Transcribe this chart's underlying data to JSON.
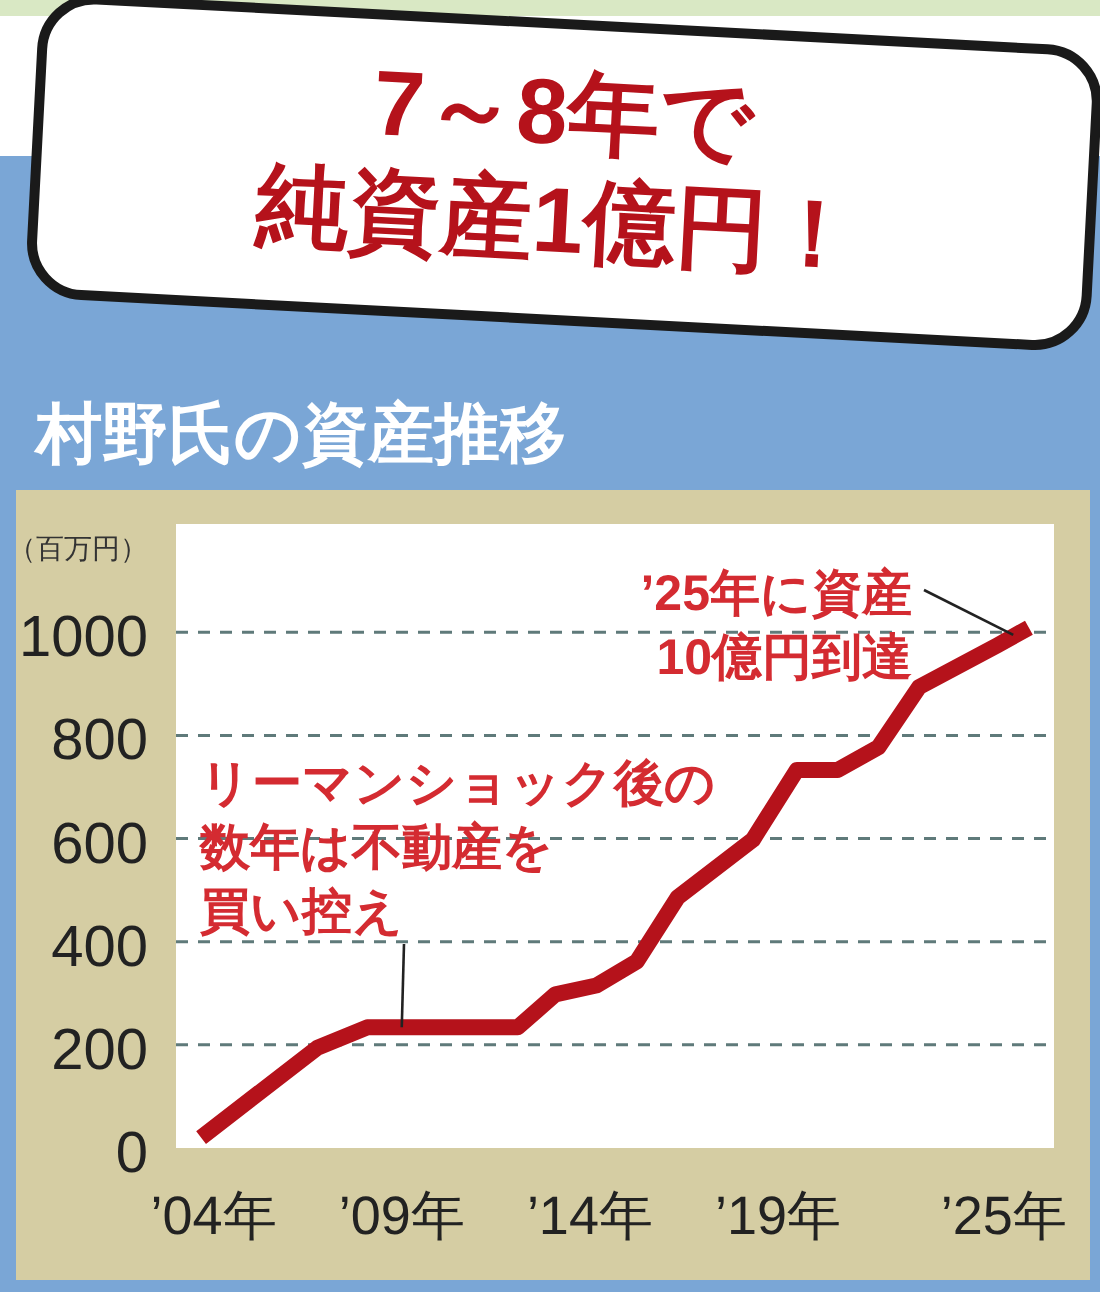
{
  "chart_data": {
    "type": "line",
    "title": "7～8年で純資産1億円！",
    "subtitle": "村野氏の資産推移",
    "ylabel": "（百万円）",
    "x": [
      "2003-09",
      "2006-10",
      "2008-02",
      "2012-02",
      "2013-02",
      "2014-03",
      "2015-04",
      "2016-05",
      "2018-05",
      "2019-07",
      "2020-08",
      "2021-09",
      "2022-10",
      "2024-11",
      "2025-09"
    ],
    "series": [
      {
        "color": "#b5121b",
        "values": [
          20,
          194,
          234,
          234,
          298,
          315,
          362,
          486,
          598,
          733,
          733,
          777,
          894,
          975,
          1009
        ]
      }
    ],
    "xlim": [
      "2003-01",
      "2026-05"
    ],
    "ylim": [
      0,
      1210
    ],
    "xticks": [
      {
        "value": "2004",
        "label": "’04年"
      },
      {
        "value": "2009",
        "label": "’09年"
      },
      {
        "value": "2014",
        "label": "’14年"
      },
      {
        "value": "2019",
        "label": "’19年"
      },
      {
        "value": "2025",
        "label": "’25年"
      }
    ],
    "yticks": [
      0,
      200,
      400,
      600,
      800,
      1000
    ],
    "grid": "y",
    "annotations": [
      {
        "text": "リーマンショック後の数年は不動産を買い控え",
        "x": "2009",
        "y": 234
      },
      {
        "text": "’25年に資産10億円到達",
        "x": "2025-04",
        "y": 995
      }
    ]
  }
}
